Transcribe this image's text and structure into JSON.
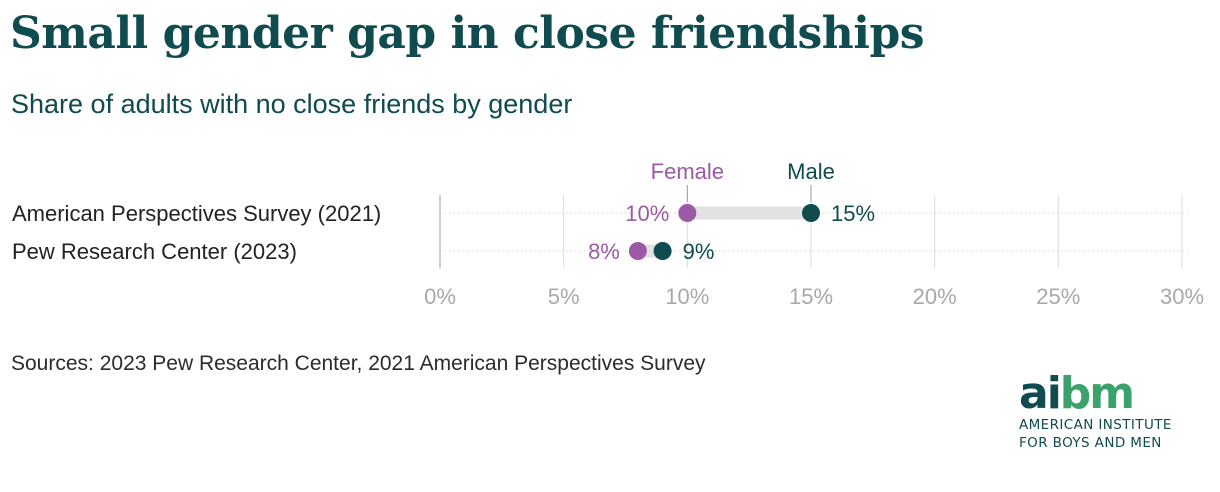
{
  "title": "Small gender gap in close friendships",
  "subtitle": "Share of adults with no close friends by gender",
  "source": "Sources: 2023 Pew Research Center, 2021 American Perspectives Survey",
  "logo": {
    "mark_left": "ai",
    "mark_right": "bm",
    "line1": "AMERICAN INSTITUTE",
    "line2": "FOR BOYS AND MEN"
  },
  "colors": {
    "title": "#0f4b4f",
    "female": "#9b59a6",
    "male": "#0f4b4f",
    "connector": "#e2e2e2",
    "grid": "#dcdcdc",
    "tick_label": "#a8a8a8"
  },
  "chart_data": {
    "type": "dumbbell",
    "x_ticks": [
      "0%",
      "5%",
      "10%",
      "15%",
      "20%",
      "25%",
      "30%"
    ],
    "xlim": [
      0,
      30
    ],
    "grid": true,
    "legend": "labels above top row",
    "series": [
      {
        "name": "Female",
        "values": [
          10,
          8
        ],
        "labels": [
          "10%",
          "8%"
        ]
      },
      {
        "name": "Male",
        "values": [
          15,
          9
        ],
        "labels": [
          "15%",
          "9%"
        ]
      }
    ],
    "categories": [
      "American Perspectives Survey (2021)",
      "Pew Research Center (2023)"
    ]
  }
}
